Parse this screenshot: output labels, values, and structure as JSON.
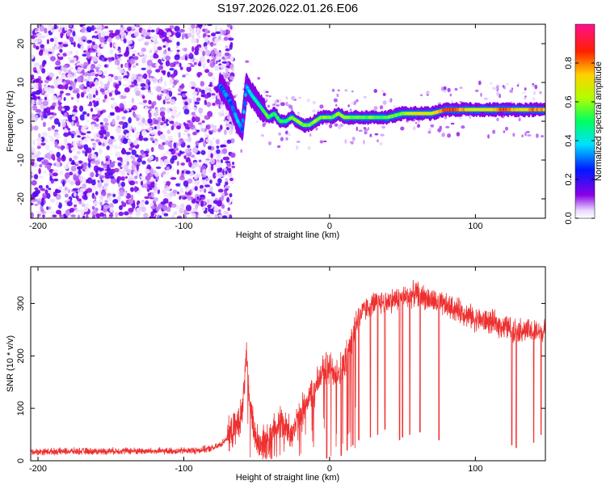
{
  "title": "S197.2026.022.01.26.E06",
  "chart_data": [
    {
      "type": "heatmap",
      "title": "S197.2026.022.01.26.E06",
      "xlabel": "Height of straight line (km)",
      "ylabel": "Frequency (Hz)",
      "xlim": [
        -205,
        148
      ],
      "ylim": [
        -25,
        25
      ],
      "xticks": [
        -200,
        -100,
        0,
        100
      ],
      "xtick_labels": [
        "-200",
        "-100",
        "0",
        "100"
      ],
      "yticks": [
        -20,
        -10,
        0,
        10,
        20
      ],
      "ytick_labels": [
        "-20",
        "-10",
        "0",
        "10",
        "20"
      ],
      "noise_region_x": [
        -205,
        -72
      ],
      "ridge": {
        "x": [
          -75,
          -68,
          -63,
          -60,
          -57,
          -54,
          -50,
          -46,
          -42,
          -38,
          -34,
          -30,
          -26,
          -22,
          -18,
          -14,
          -10,
          -6,
          -2,
          2,
          6,
          10,
          20,
          30,
          40,
          50,
          60,
          70,
          80,
          90,
          100,
          110,
          120,
          130,
          140,
          148
        ],
        "freq": [
          9,
          5,
          0,
          -2,
          9,
          7,
          5,
          3,
          1,
          2,
          0,
          0,
          1,
          0,
          -1,
          -1,
          0,
          1,
          1,
          1,
          2,
          1,
          1,
          1,
          1,
          2,
          2,
          2,
          3,
          3,
          3,
          3,
          3,
          3,
          3,
          3
        ],
        "amplitude": [
          0.3,
          0.3,
          0.35,
          0.3,
          0.35,
          0.4,
          0.45,
          0.5,
          0.55,
          0.5,
          0.55,
          0.5,
          0.55,
          0.6,
          0.6,
          0.55,
          0.6,
          0.6,
          0.6,
          0.55,
          0.6,
          0.6,
          0.55,
          0.55,
          0.55,
          0.6,
          0.7,
          0.65,
          0.85,
          0.8,
          0.65,
          0.7,
          0.85,
          0.7,
          0.8,
          0.75
        ]
      },
      "colorbar": {
        "label": "Normalized spectral amplitude",
        "range": [
          0,
          1
        ],
        "ticks": [
          0.0,
          0.2,
          0.4,
          0.6,
          0.8
        ],
        "tick_labels": [
          "0.0",
          "0.2",
          "0.4",
          "0.6",
          "0.8"
        ]
      }
    },
    {
      "type": "line",
      "title": "",
      "xlabel": "Height of straight line (km)",
      "ylabel": "SNR (10 * v/v)",
      "xlim": [
        -205,
        148
      ],
      "ylim": [
        0,
        370
      ],
      "xticks": [
        -200,
        -100,
        0,
        100
      ],
      "xtick_labels": [
        "-200",
        "-100",
        "0",
        "100"
      ],
      "yticks": [
        0,
        100,
        200,
        300
      ],
      "ytick_labels": [
        "0",
        "100",
        "200",
        "300"
      ],
      "series": [
        {
          "name": "SNR",
          "color": "#ee3030",
          "x": [
            -205,
            -180,
            -160,
            -140,
            -120,
            -100,
            -90,
            -80,
            -75,
            -70,
            -65,
            -60,
            -57,
            -55,
            -52,
            -50,
            -45,
            -40,
            -35,
            -30,
            -25,
            -20,
            -15,
            -10,
            -5,
            0,
            5,
            10,
            15,
            20,
            25,
            30,
            40,
            50,
            60,
            70,
            80,
            90,
            100,
            110,
            120,
            130,
            140,
            148
          ],
          "y": [
            17,
            18,
            18,
            19,
            18,
            19,
            20,
            24,
            30,
            45,
            60,
            90,
            200,
            120,
            60,
            40,
            30,
            45,
            80,
            60,
            55,
            85,
            120,
            130,
            175,
            175,
            170,
            180,
            230,
            275,
            290,
            300,
            305,
            310,
            320,
            305,
            295,
            285,
            270,
            265,
            255,
            250,
            245,
            245
          ],
          "dropout_x": [
            -2,
            8,
            12,
            16,
            20,
            28,
            33,
            38,
            48,
            50,
            55,
            62,
            75,
            125,
            128,
            140,
            145
          ],
          "dropout_depth": [
            5,
            10,
            20,
            30,
            40,
            45,
            50,
            60,
            40,
            45,
            50,
            55,
            40,
            30,
            25,
            35,
            50
          ]
        }
      ]
    }
  ]
}
